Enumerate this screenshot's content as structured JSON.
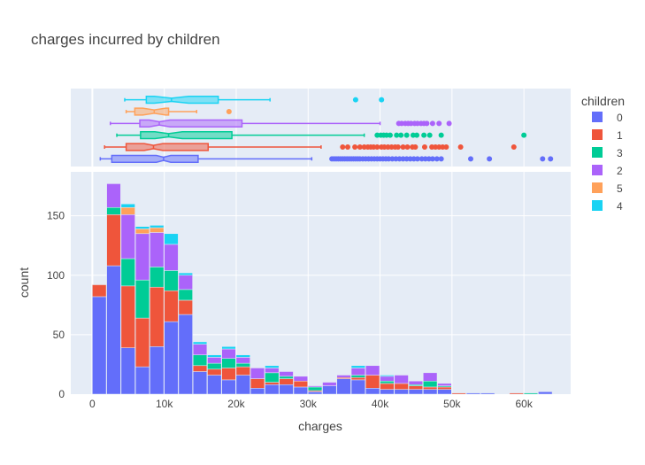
{
  "chart_data": {
    "type": "bar",
    "subtype": "stacked histogram with marginal notched box plots",
    "title": "charges incurred by children",
    "xlabel": "charges",
    "ylabel": "count",
    "xlim": [
      -3000,
      66500
    ],
    "ylim": [
      0,
      187
    ],
    "bin_width": 2000,
    "x_ticks": [
      0,
      10000,
      20000,
      30000,
      40000,
      50000,
      60000
    ],
    "x_tick_labels": [
      "0",
      "10k",
      "20k",
      "30k",
      "40k",
      "50k",
      "60k"
    ],
    "y_ticks": [
      0,
      50,
      100,
      150
    ],
    "y_tick_labels": [
      "0",
      "50",
      "100",
      "150"
    ],
    "grid": true,
    "legend": {
      "title": "children",
      "placement": "right",
      "order": [
        "0",
        "1",
        "3",
        "2",
        "5",
        "4"
      ]
    },
    "colors": {
      "0": "#636efa",
      "1": "#EF553B",
      "3": "#00cc96",
      "2": "#ab63fa",
      "5": "#FFA15A",
      "4": "#19d3f3"
    },
    "bins": [
      {
        "x0": 0,
        "values": {
          "0": 82,
          "1": 10,
          "3": 0,
          "2": 0,
          "5": 0,
          "4": 0
        }
      },
      {
        "x0": 2000,
        "values": {
          "0": 108,
          "1": 43,
          "3": 6,
          "2": 20,
          "5": 0,
          "4": 0
        }
      },
      {
        "x0": 4000,
        "values": {
          "0": 39,
          "1": 52,
          "3": 23,
          "2": 37,
          "5": 6,
          "4": 3
        }
      },
      {
        "x0": 6000,
        "values": {
          "0": 23,
          "1": 41,
          "3": 32,
          "2": 39,
          "5": 4,
          "4": 2
        }
      },
      {
        "x0": 8000,
        "values": {
          "0": 40,
          "1": 50,
          "3": 17,
          "2": 29,
          "5": 4,
          "4": 2
        }
      },
      {
        "x0": 10000,
        "values": {
          "0": 61,
          "1": 26,
          "3": 17,
          "2": 22,
          "5": 0,
          "4": 9
        }
      },
      {
        "x0": 12000,
        "values": {
          "0": 67,
          "1": 12,
          "3": 9,
          "2": 12,
          "5": 0,
          "4": 2
        }
      },
      {
        "x0": 14000,
        "values": {
          "0": 19,
          "1": 5,
          "3": 9,
          "2": 9,
          "5": 0,
          "4": 2
        }
      },
      {
        "x0": 16000,
        "values": {
          "0": 16,
          "1": 5,
          "3": 5,
          "2": 5,
          "5": 0,
          "4": 2
        }
      },
      {
        "x0": 18000,
        "values": {
          "0": 12,
          "1": 10,
          "3": 8,
          "2": 8,
          "5": 0,
          "4": 2
        }
      },
      {
        "x0": 20000,
        "values": {
          "0": 16,
          "1": 7,
          "3": 3,
          "2": 5,
          "5": 0,
          "4": 2
        }
      },
      {
        "x0": 22000,
        "values": {
          "0": 5,
          "1": 8,
          "3": 0,
          "2": 9,
          "5": 0,
          "4": 0
        }
      },
      {
        "x0": 24000,
        "values": {
          "0": 8,
          "1": 2,
          "3": 8,
          "2": 4,
          "5": 0,
          "4": 2
        }
      },
      {
        "x0": 26000,
        "values": {
          "0": 8,
          "1": 5,
          "3": 2,
          "2": 4,
          "5": 0,
          "4": 0
        }
      },
      {
        "x0": 28000,
        "values": {
          "0": 6,
          "1": 5,
          "3": 0,
          "2": 4,
          "5": 0,
          "4": 0
        }
      },
      {
        "x0": 30000,
        "values": {
          "0": 2,
          "1": 1,
          "3": 3,
          "2": 1,
          "5": 0,
          "4": 0
        }
      },
      {
        "x0": 32000,
        "values": {
          "0": 7,
          "1": 0,
          "3": 0,
          "2": 3,
          "5": 0,
          "4": 0
        }
      },
      {
        "x0": 34000,
        "values": {
          "0": 13,
          "1": 1,
          "3": 0,
          "2": 2,
          "5": 0,
          "4": 0
        }
      },
      {
        "x0": 36000,
        "values": {
          "0": 12,
          "1": 2,
          "3": 2,
          "2": 6,
          "5": 0,
          "4": 2
        }
      },
      {
        "x0": 38000,
        "values": {
          "0": 5,
          "1": 11,
          "3": 0,
          "2": 8,
          "5": 0,
          "4": 0
        }
      },
      {
        "x0": 40000,
        "values": {
          "0": 4,
          "1": 5,
          "3": 2,
          "2": 4,
          "5": 0,
          "4": 1
        }
      },
      {
        "x0": 42000,
        "values": {
          "0": 4,
          "1": 5,
          "3": 0,
          "2": 7,
          "5": 0,
          "4": 0
        }
      },
      {
        "x0": 44000,
        "values": {
          "0": 4,
          "1": 3,
          "3": 1,
          "2": 3,
          "5": 0,
          "4": 0
        }
      },
      {
        "x0": 46000,
        "values": {
          "0": 4,
          "1": 2,
          "3": 5,
          "2": 7,
          "5": 0,
          "4": 0
        }
      },
      {
        "x0": 48000,
        "values": {
          "0": 4,
          "1": 2,
          "3": 1,
          "2": 2,
          "5": 0,
          "4": 0
        }
      },
      {
        "x0": 50000,
        "values": {
          "0": 0,
          "1": 1,
          "3": 0,
          "2": 0,
          "5": 0,
          "4": 0
        }
      },
      {
        "x0": 52000,
        "values": {
          "0": 1,
          "1": 0,
          "3": 0,
          "2": 0,
          "5": 0,
          "4": 0
        }
      },
      {
        "x0": 54000,
        "values": {
          "0": 1,
          "1": 0,
          "3": 0,
          "2": 0,
          "5": 0,
          "4": 0
        }
      },
      {
        "x0": 56000,
        "values": {
          "0": 0,
          "1": 0,
          "3": 0,
          "2": 0,
          "5": 0,
          "4": 0
        }
      },
      {
        "x0": 58000,
        "values": {
          "0": 0,
          "1": 1,
          "3": 0,
          "2": 0,
          "5": 0,
          "4": 0
        }
      },
      {
        "x0": 60000,
        "values": {
          "0": 0,
          "1": 0,
          "3": 1,
          "2": 0,
          "5": 0,
          "4": 0
        }
      },
      {
        "x0": 62000,
        "values": {
          "0": 2,
          "1": 0,
          "3": 0,
          "2": 0,
          "5": 0,
          "4": 0
        }
      }
    ],
    "box_order_top_to_bottom": [
      "4",
      "5",
      "2",
      "3",
      "1",
      "0"
    ],
    "boxes": {
      "4": {
        "min": 4500,
        "q1": 7500,
        "median": 11000,
        "q3": 17500,
        "max": 24700,
        "notch_low": 8600,
        "notch_high": 13400,
        "outliers": [
          36600,
          40200
        ]
      },
      "5": {
        "min": 4700,
        "q1": 5900,
        "median": 8600,
        "q3": 10600,
        "max": 14500,
        "notch_low": 7000,
        "notch_high": 10200,
        "outliers": [
          19000
        ]
      },
      "2": {
        "min": 2500,
        "q1": 6600,
        "median": 9300,
        "q3": 20800,
        "max": 40000,
        "notch_low": 7900,
        "notch_high": 10800,
        "outliers": [
          42600,
          43000,
          43500,
          43900,
          44300,
          44800,
          45200,
          45700,
          46100,
          46500,
          47300,
          48200,
          49600
        ]
      },
      "3": {
        "min": 3400,
        "q1": 6700,
        "median": 10600,
        "q3": 19400,
        "max": 37800,
        "notch_low": 8700,
        "notch_high": 12500,
        "outliers": [
          39600,
          40100,
          40500,
          40900,
          41400,
          42300,
          42900,
          43700,
          44600,
          45100,
          46100,
          46900,
          48500,
          60000
        ]
      },
      "1": {
        "min": 1700,
        "q1": 4700,
        "median": 8500,
        "q3": 16100,
        "max": 31800,
        "notch_low": 7200,
        "notch_high": 9800,
        "outliers": [
          34800,
          35500,
          36500,
          37200,
          37800,
          38300,
          38700,
          39100,
          39600,
          40200,
          40600,
          41100,
          41600,
          42100,
          42500,
          43200,
          43800,
          44500,
          44900,
          46200,
          47200,
          47700,
          48200,
          48700,
          49200,
          51200,
          58600
        ]
      },
      "0": {
        "min": 1100,
        "q1": 2700,
        "median": 9900,
        "q3": 14700,
        "max": 30500,
        "notch_low": 8900,
        "notch_high": 10900,
        "outliers": [
          33300,
          33600,
          33900,
          34200,
          34500,
          34800,
          35100,
          35400,
          35700,
          36000,
          36300,
          36600,
          36900,
          37200,
          37600,
          38000,
          38400,
          38800,
          39200,
          39600,
          40000,
          40400,
          40800,
          41200,
          41700,
          42200,
          42700,
          43200,
          43700,
          44200,
          44700,
          45200,
          45800,
          46300,
          46800,
          47300,
          47900,
          48500,
          52600,
          55200,
          62600,
          63700
        ]
      }
    }
  }
}
